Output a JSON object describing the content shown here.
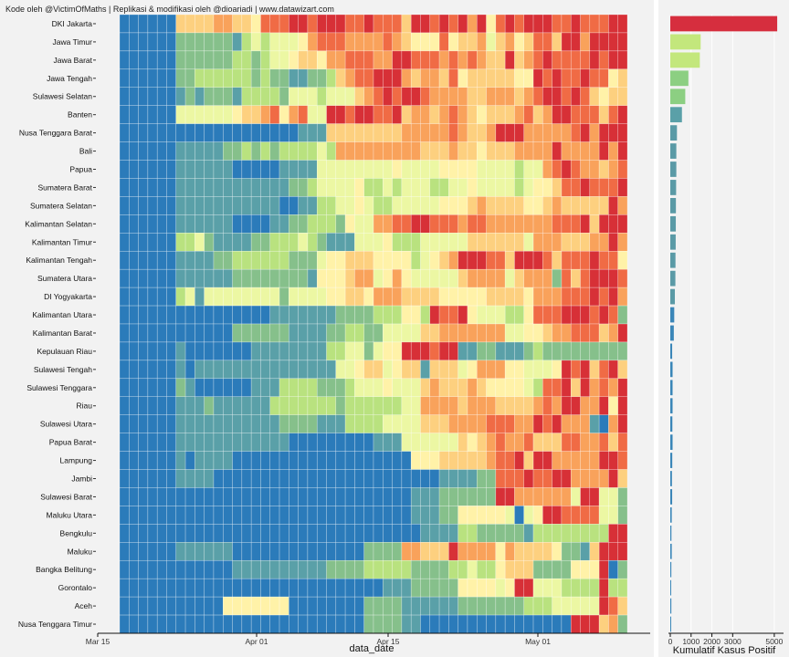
{
  "caption": "Kode oleh @VictimOfMaths | Replikasi & modifikasi oleh @dioariadi | www.datawizart.com",
  "chart_data": [
    {
      "type": "heatmap",
      "xlabel": "data_date",
      "x_ticks": [
        "Mar 15",
        "Apr 01",
        "Apr 15",
        "May 01"
      ],
      "days": 54,
      "first_day": "Mar 18",
      "provinces": [
        "DKI Jakarta",
        "Jawa Timur",
        "Jawa Barat",
        "Jawa Tengah",
        "Sulawesi Selatan",
        "Banten",
        "Nusa Tenggara Barat",
        "Bali",
        "Papua",
        "Sumatera Barat",
        "Sumatera Selatan",
        "Kalimantan Selatan",
        "Kalimantan Timur",
        "Kalimantan Tengah",
        "Sumatera Utara",
        "DI Yogyakarta",
        "Kalimantan Utara",
        "Kalimantan Barat",
        "Kepulauan Riau",
        "Sulawesi Tengah",
        "Sulawesi Tenggara",
        "Riau",
        "Sulawesi Utara",
        "Papua Barat",
        "Lampung",
        "Jambi",
        "Sulawesi Barat",
        "Maluku Utara",
        "Bengkulu",
        "Maluku",
        "Bangka Belitung",
        "Gorontalo",
        "Aceh",
        "Nusa Tenggara Timur"
      ],
      "palette": [
        "#2b7bba",
        "#5aa0a8",
        "#86c08b",
        "#b9e27f",
        "#ecf7a3",
        "#fff2a8",
        "#fdd07f",
        "#f9a25b",
        "#f06b45",
        "#d73037"
      ],
      "levels": [
        "000000666677665888998999889888699898979589899988988899",
        "000000222222134344457888777787655585667467568869979999",
        "000000222222332344566577888779988878787669678988889899",
        "000000223333332322112236788999767768566666559898898856",
        "000000121222133332444344467898998777766777678998986566",
        "000000444444566785784499899889677678765666786799888689",
        "000000000000000000011166666666777778766799977777897999",
        "000000111112232323333437777777776667665666777797777979",
        "000000111111000001111444444445444455554444344789877678",
        "000000111111111111223444453343444334454444345568898889",
        "000000111111111110011334454334444455567666655676666697",
        "000000111111000011223332544778899888788777777788896999",
        "000000334211112233343211144453334444466666647776667797",
        "000000111122333333222455666555534567999886999868889885",
        "000000111111222222221555677457544444677774677728689998",
        "000000341444444442444455665777666655555666657778889897",
        "000000000000000011111112222333553988954443358889998982",
        "000000000000222222111122332244446677777774455677888679",
        "000000100000001111111133442455999899112211123222222222",
        "000000101111111111111114456645661666457775544459896896",
        "000000210000001113333222344454446766676555543889697879",
        "000000111211111133333332333333447777677766667879977959",
        "000000111111111112222111333344446667777888779897771079",
        "000000111111111111000000000111444444656787786668877868",
        "000000101111000000000000000000055566666788969977777998",
        "000000111100000000000000000000000011112288898899777796",
        "000000000000000000000000000000011122222299777777499442",
        "000000000000000000000000000000011122555554045998888442",
        "000000000000000000000000000000001111332222213333333399",
        "000000111111000000000000002222776669777757666652216999",
        "000000000000111111111122223333322223343356662222555902",
        "000000000000000000000000000011122222555545994443333933",
        "000000000005555555000000002222111111222222233344444986",
        "000000000000000000000000002222110000000000000000999672"
      ],
      "cumulative_positive": [
        5140,
        1460,
        1420,
        870,
        720,
        560,
        320,
        290,
        290,
        280,
        270,
        265,
        260,
        250,
        245,
        220,
        190,
        170,
        90,
        110,
        110,
        110,
        100,
        110,
        95,
        80,
        90,
        70,
        55,
        70,
        50,
        40,
        50,
        40
      ],
      "bar_xlabel": "Kumulatif Kasus Positif",
      "bar_ticks": [
        0,
        1000,
        2000,
        3000,
        5000
      ],
      "bar_xlim": [
        0,
        5400
      ]
    }
  ]
}
